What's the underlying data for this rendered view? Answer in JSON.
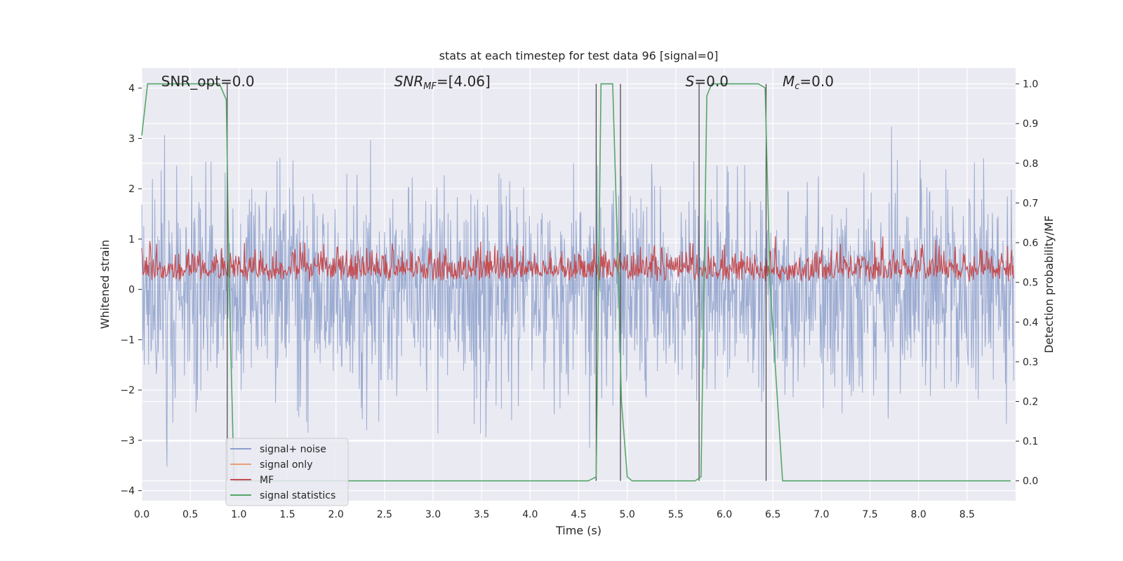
{
  "chart_data": {
    "type": "line",
    "title": "stats at each timestep for test data 96 [signal=0]",
    "xlabel": "Time (s)",
    "ylabel_left": "Whitened strain",
    "ylabel_right": "Detection probability/MF",
    "xlim": [
      0.0,
      9.0
    ],
    "ylim_left": [
      -4.2,
      4.4
    ],
    "ylim_right": [
      -0.05,
      1.04
    ],
    "x_ticks": [
      "0.0",
      "0.5",
      "1.0",
      "1.5",
      "2.0",
      "2.5",
      "3.0",
      "3.5",
      "4.0",
      "4.5",
      "5.0",
      "5.5",
      "6.0",
      "6.5",
      "7.0",
      "7.5",
      "8.0",
      "8.5"
    ],
    "y_left_ticks": [
      "4",
      "3",
      "2",
      "1",
      "0",
      "−1",
      "−2",
      "−3",
      "−4"
    ],
    "y_right_ticks": [
      "1.0",
      "0.9",
      "0.8",
      "0.7",
      "0.6",
      "0.5",
      "0.4",
      "0.3",
      "0.2",
      "0.1",
      "0.0"
    ],
    "grid": true,
    "legend_position": "lower-left",
    "annotations": [
      {
        "text": "SNR_opt=0.0",
        "x": 0.2
      },
      {
        "text": "SNR_MF=[4.06]",
        "x": 2.6
      },
      {
        "text": "S=0.0",
        "x": 5.6
      },
      {
        "text": "M_c=0.0",
        "x": 6.6
      }
    ],
    "series": [
      {
        "name": "signal+ noise",
        "color": "#8da0cb",
        "axis": "left",
        "kind": "noise",
        "amplitude_typical": 2.5,
        "amplitude_peak": 3.8
      },
      {
        "name": "signal only",
        "color": "#e8a07a",
        "axis": "left",
        "values": []
      },
      {
        "name": "MF",
        "color": "#c44e52",
        "axis": "right",
        "kind": "noise",
        "range": [
          0.5,
          0.62
        ]
      },
      {
        "name": "signal statistics",
        "color": "#55a868",
        "axis": "right",
        "x": [
          0.0,
          0.06,
          0.8,
          0.87,
          0.9,
          0.95,
          4.6,
          4.68,
          4.73,
          4.85,
          4.91,
          4.94,
          5.0,
          5.05,
          5.7,
          5.76,
          5.82,
          5.87,
          6.35,
          6.42,
          6.47,
          6.6,
          8.95
        ],
        "values": [
          0.87,
          1.0,
          1.0,
          0.96,
          0.5,
          0.0,
          0.0,
          0.01,
          1.0,
          1.0,
          0.5,
          0.2,
          0.01,
          0.0,
          0.0,
          0.01,
          0.97,
          1.0,
          1.0,
          0.99,
          0.5,
          0.0,
          0.0
        ]
      }
    ],
    "vertical_lines_x": [
      0.88,
      4.68,
      4.93,
      5.74,
      6.43
    ]
  }
}
